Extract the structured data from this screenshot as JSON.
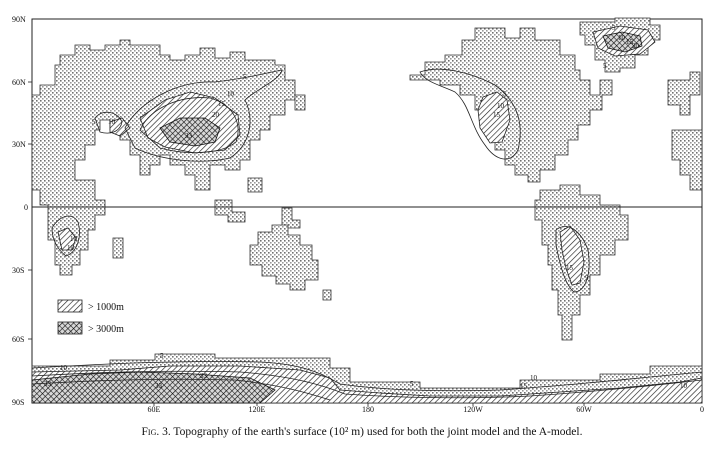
{
  "caption": {
    "prefix": "Fig. 3.",
    "text": "Topography of the earth's surface (10² m) used for both the joint model and the A-model."
  },
  "axes": {
    "lat_labels": [
      "90N",
      "60N",
      "30N",
      "0",
      "30S",
      "60S",
      "90S"
    ],
    "lon_labels": [
      "60E",
      "120E",
      "180",
      "120W",
      "60W",
      "0"
    ]
  },
  "legend": {
    "items": [
      {
        "label": "> 1000m",
        "pattern": "hatch-light"
      },
      {
        "label": "> 3000m",
        "pattern": "hatch-cross"
      }
    ]
  },
  "contour_labels": [
    "5",
    "10",
    "15",
    "20",
    "33",
    "5",
    "10",
    "15",
    "10",
    "5",
    "10",
    "15",
    "10",
    "5",
    "5",
    "10",
    "5",
    "10",
    "15",
    "20",
    "33",
    "33",
    "33",
    "5",
    "10",
    "15",
    "5",
    "10"
  ],
  "colors": {
    "land_stipple": "#8c8c8c",
    "outline": "#222222",
    "background": "#ffffff"
  }
}
